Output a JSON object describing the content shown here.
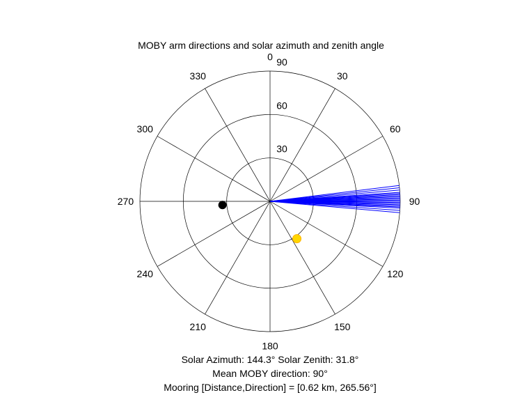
{
  "chart_data": {
    "type": "polar",
    "title": "MOBY arm directions and solar azimuth and zenith angle",
    "angular_axis": {
      "zero": "top",
      "direction": "clockwise",
      "tick_labels": [
        "0",
        "30",
        "60",
        "90",
        "120",
        "150",
        "180",
        "210",
        "240",
        "270",
        "300",
        "330"
      ]
    },
    "radial_axis": {
      "range": [
        0,
        90
      ],
      "tick_labels": [
        "30",
        "60",
        "90"
      ]
    },
    "grid": true,
    "series": [
      {
        "kind": "arm_directions",
        "color": "#0000ff",
        "radius": 90,
        "azimuths": [
          83.0,
          84.0,
          85.0,
          86.0,
          86.5,
          87.0,
          87.5,
          88.0,
          88.5,
          89.0,
          89.5,
          90.0,
          90.5,
          91.0,
          91.5,
          92.0,
          92.5,
          93.0,
          94.0,
          95.0
        ]
      },
      {
        "kind": "sun",
        "color": "#ffd700",
        "azimuth": 144.3,
        "zenith": 31.8
      },
      {
        "kind": "mooring",
        "color": "#000000",
        "azimuth": 265.56,
        "radius": 33
      }
    ],
    "annotations": [
      "Solar Azimuth: 144.3°   Solar Zenith: 31.8°",
      "Mean MOBY direction: 90°",
      "Mooring [Distance,Direction] = [0.62 km, 265.56°]"
    ]
  }
}
